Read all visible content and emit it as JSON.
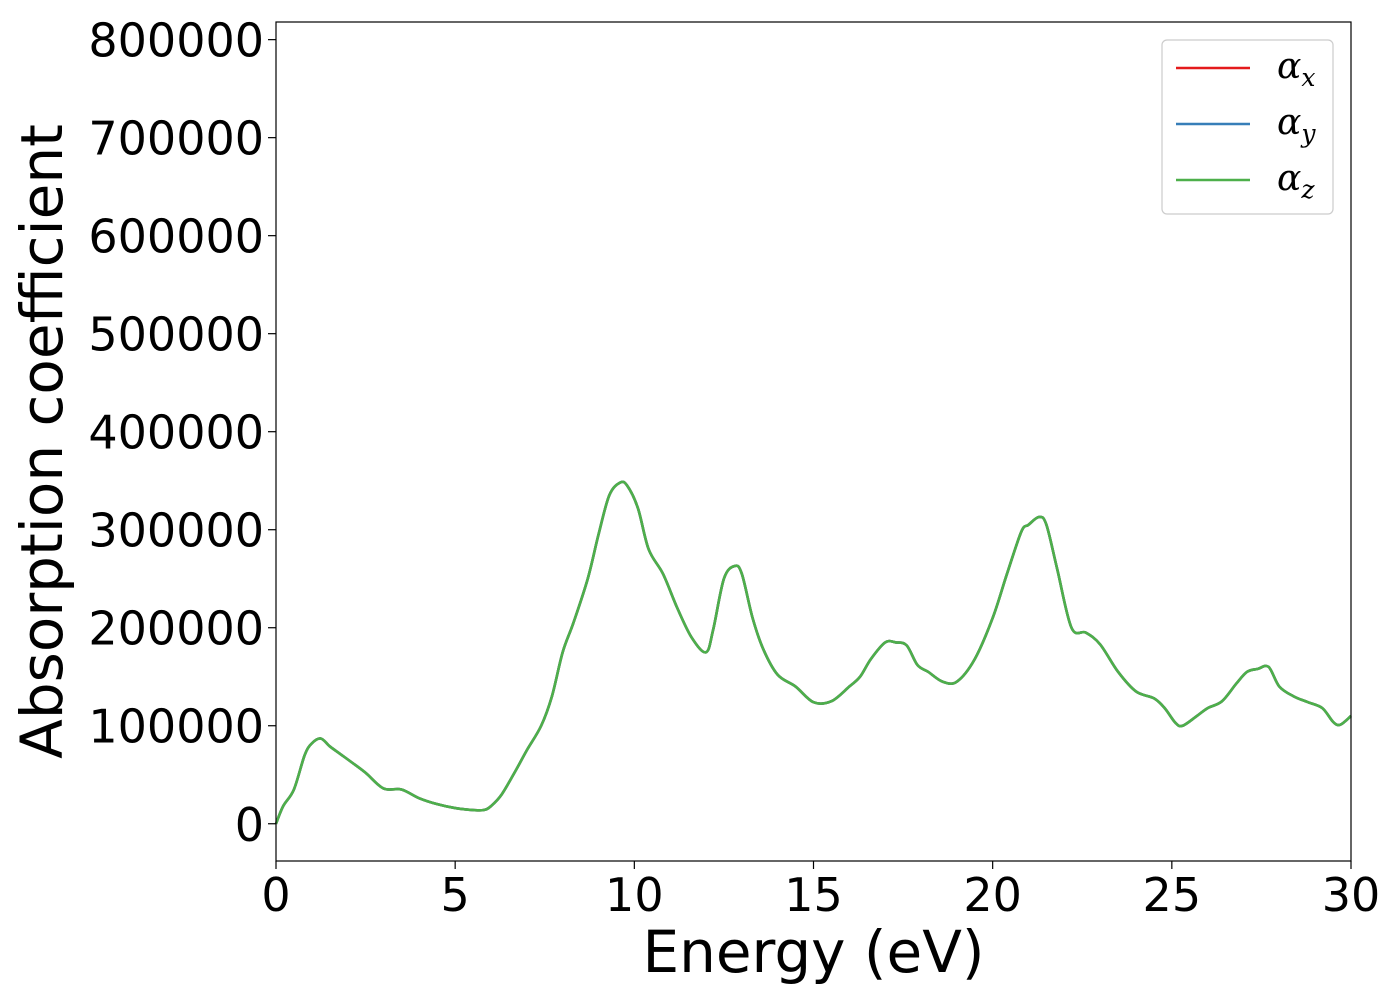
{
  "chart_data": {
    "type": "line",
    "title": "",
    "xlabel": "Energy (eV)",
    "ylabel": "Absorption coefficient",
    "xlim": [
      0,
      30
    ],
    "ylim": [
      -38000,
      818000
    ],
    "xticks": [
      0,
      5,
      10,
      15,
      20,
      25,
      30
    ],
    "yticks": [
      0,
      100000,
      200000,
      300000,
      400000,
      500000,
      600000,
      700000,
      800000
    ],
    "grid": false,
    "legend_position": "top-right",
    "series": [
      {
        "name": "α",
        "subscript": "x",
        "color": "#e41a1c",
        "x": [
          0,
          0.2,
          0.5,
          0.8,
          1.0,
          1.25,
          1.5,
          1.8,
          2.1,
          2.5,
          3.0,
          3.5,
          4.0,
          4.5,
          5.0,
          5.5,
          5.8,
          6.0,
          6.3,
          6.7,
          7.0,
          7.4,
          7.7,
          8.0,
          8.3,
          8.7,
          9.0,
          9.3,
          9.6,
          9.8,
          10.1,
          10.4,
          10.8,
          11.2,
          11.6,
          12.0,
          12.2,
          12.5,
          12.8,
          13.0,
          13.3,
          13.6,
          14.0,
          14.5,
          15.0,
          15.5,
          16.0,
          16.3,
          16.6,
          17.0,
          17.3,
          17.6,
          17.9,
          18.2,
          18.6,
          19.0,
          19.5,
          20.0,
          20.4,
          20.8,
          21.0,
          21.3,
          21.5,
          21.8,
          22.2,
          22.6,
          23.0,
          23.5,
          24.0,
          24.5,
          24.8,
          25.1,
          25.3,
          25.7,
          26.0,
          26.4,
          26.8,
          27.1,
          27.4,
          27.7,
          28.0,
          28.4,
          28.8,
          29.2,
          29.5,
          29.7,
          30.0
        ],
        "y": [
          0,
          18000,
          35000,
          70000,
          82000,
          87000,
          79000,
          71000,
          63000,
          52000,
          36000,
          35000,
          26000,
          20000,
          16000,
          14000,
          14000,
          18000,
          30000,
          55000,
          75000,
          100000,
          130000,
          175000,
          205000,
          250000,
          295000,
          335000,
          348000,
          345000,
          322000,
          280000,
          255000,
          220000,
          190000,
          175000,
          198000,
          250000,
          263000,
          255000,
          210000,
          178000,
          152000,
          140000,
          124000,
          125000,
          140000,
          150000,
          168000,
          185000,
          185000,
          182000,
          162000,
          155000,
          145000,
          145000,
          168000,
          210000,
          255000,
          298000,
          305000,
          313000,
          305000,
          260000,
          200000,
          195000,
          183000,
          155000,
          135000,
          128000,
          118000,
          103000,
          100000,
          110000,
          118000,
          125000,
          143000,
          155000,
          158000,
          160000,
          140000,
          130000,
          124000,
          118000,
          104000,
          101000,
          110000
        ]
      },
      {
        "name": "α",
        "subscript": "y",
        "color": "#377eb8",
        "x": [
          0,
          0.2,
          0.5,
          0.8,
          1.0,
          1.25,
          1.5,
          1.8,
          2.1,
          2.5,
          3.0,
          3.5,
          4.0,
          4.5,
          5.0,
          5.5,
          5.8,
          6.0,
          6.3,
          6.7,
          7.0,
          7.4,
          7.7,
          8.0,
          8.3,
          8.7,
          9.0,
          9.3,
          9.6,
          9.8,
          10.1,
          10.4,
          10.8,
          11.2,
          11.6,
          12.0,
          12.2,
          12.5,
          12.8,
          13.0,
          13.3,
          13.6,
          14.0,
          14.5,
          15.0,
          15.5,
          16.0,
          16.3,
          16.6,
          17.0,
          17.3,
          17.6,
          17.9,
          18.2,
          18.6,
          19.0,
          19.5,
          20.0,
          20.4,
          20.8,
          21.0,
          21.3,
          21.5,
          21.8,
          22.2,
          22.6,
          23.0,
          23.5,
          24.0,
          24.5,
          24.8,
          25.1,
          25.3,
          25.7,
          26.0,
          26.4,
          26.8,
          27.1,
          27.4,
          27.7,
          28.0,
          28.4,
          28.8,
          29.2,
          29.5,
          29.7,
          30.0
        ],
        "y": [
          0,
          18000,
          35000,
          70000,
          82000,
          87000,
          79000,
          71000,
          63000,
          52000,
          36000,
          35000,
          26000,
          20000,
          16000,
          14000,
          14000,
          18000,
          30000,
          55000,
          75000,
          100000,
          130000,
          175000,
          205000,
          250000,
          295000,
          335000,
          348000,
          345000,
          322000,
          280000,
          255000,
          220000,
          190000,
          175000,
          198000,
          250000,
          263000,
          255000,
          210000,
          178000,
          152000,
          140000,
          124000,
          125000,
          140000,
          150000,
          168000,
          185000,
          185000,
          182000,
          162000,
          155000,
          145000,
          145000,
          168000,
          210000,
          255000,
          298000,
          305000,
          313000,
          305000,
          260000,
          200000,
          195000,
          183000,
          155000,
          135000,
          128000,
          118000,
          103000,
          100000,
          110000,
          118000,
          125000,
          143000,
          155000,
          158000,
          160000,
          140000,
          130000,
          124000,
          118000,
          104000,
          101000,
          110000
        ]
      },
      {
        "name": "α",
        "subscript": "z",
        "color": "#4daf4a",
        "x": [
          0,
          0.2,
          0.5,
          0.8,
          1.0,
          1.25,
          1.5,
          1.8,
          2.1,
          2.5,
          3.0,
          3.5,
          4.0,
          4.5,
          5.0,
          5.5,
          5.8,
          6.0,
          6.3,
          6.7,
          7.0,
          7.4,
          7.7,
          8.0,
          8.3,
          8.7,
          9.0,
          9.3,
          9.6,
          9.8,
          10.1,
          10.4,
          10.8,
          11.2,
          11.6,
          12.0,
          12.2,
          12.5,
          12.8,
          13.0,
          13.3,
          13.6,
          14.0,
          14.5,
          15.0,
          15.5,
          16.0,
          16.3,
          16.6,
          17.0,
          17.3,
          17.6,
          17.9,
          18.2,
          18.6,
          19.0,
          19.5,
          20.0,
          20.4,
          20.8,
          21.0,
          21.3,
          21.5,
          21.8,
          22.2,
          22.6,
          23.0,
          23.5,
          24.0,
          24.5,
          24.8,
          25.1,
          25.3,
          25.7,
          26.0,
          26.4,
          26.8,
          27.1,
          27.4,
          27.7,
          28.0,
          28.4,
          28.8,
          29.2,
          29.5,
          29.7,
          30.0
        ],
        "y": [
          0,
          18000,
          35000,
          70000,
          82000,
          87000,
          79000,
          71000,
          63000,
          52000,
          36000,
          35000,
          26000,
          20000,
          16000,
          14000,
          14000,
          18000,
          30000,
          55000,
          75000,
          100000,
          130000,
          175000,
          205000,
          250000,
          295000,
          335000,
          348000,
          345000,
          322000,
          280000,
          255000,
          220000,
          190000,
          175000,
          198000,
          250000,
          263000,
          255000,
          210000,
          178000,
          152000,
          140000,
          124000,
          125000,
          140000,
          150000,
          168000,
          185000,
          185000,
          182000,
          162000,
          155000,
          145000,
          145000,
          168000,
          210000,
          255000,
          298000,
          305000,
          313000,
          305000,
          260000,
          200000,
          195000,
          183000,
          155000,
          135000,
          128000,
          118000,
          103000,
          100000,
          110000,
          118000,
          125000,
          143000,
          155000,
          158000,
          160000,
          140000,
          130000,
          124000,
          118000,
          104000,
          101000,
          110000
        ]
      }
    ]
  }
}
